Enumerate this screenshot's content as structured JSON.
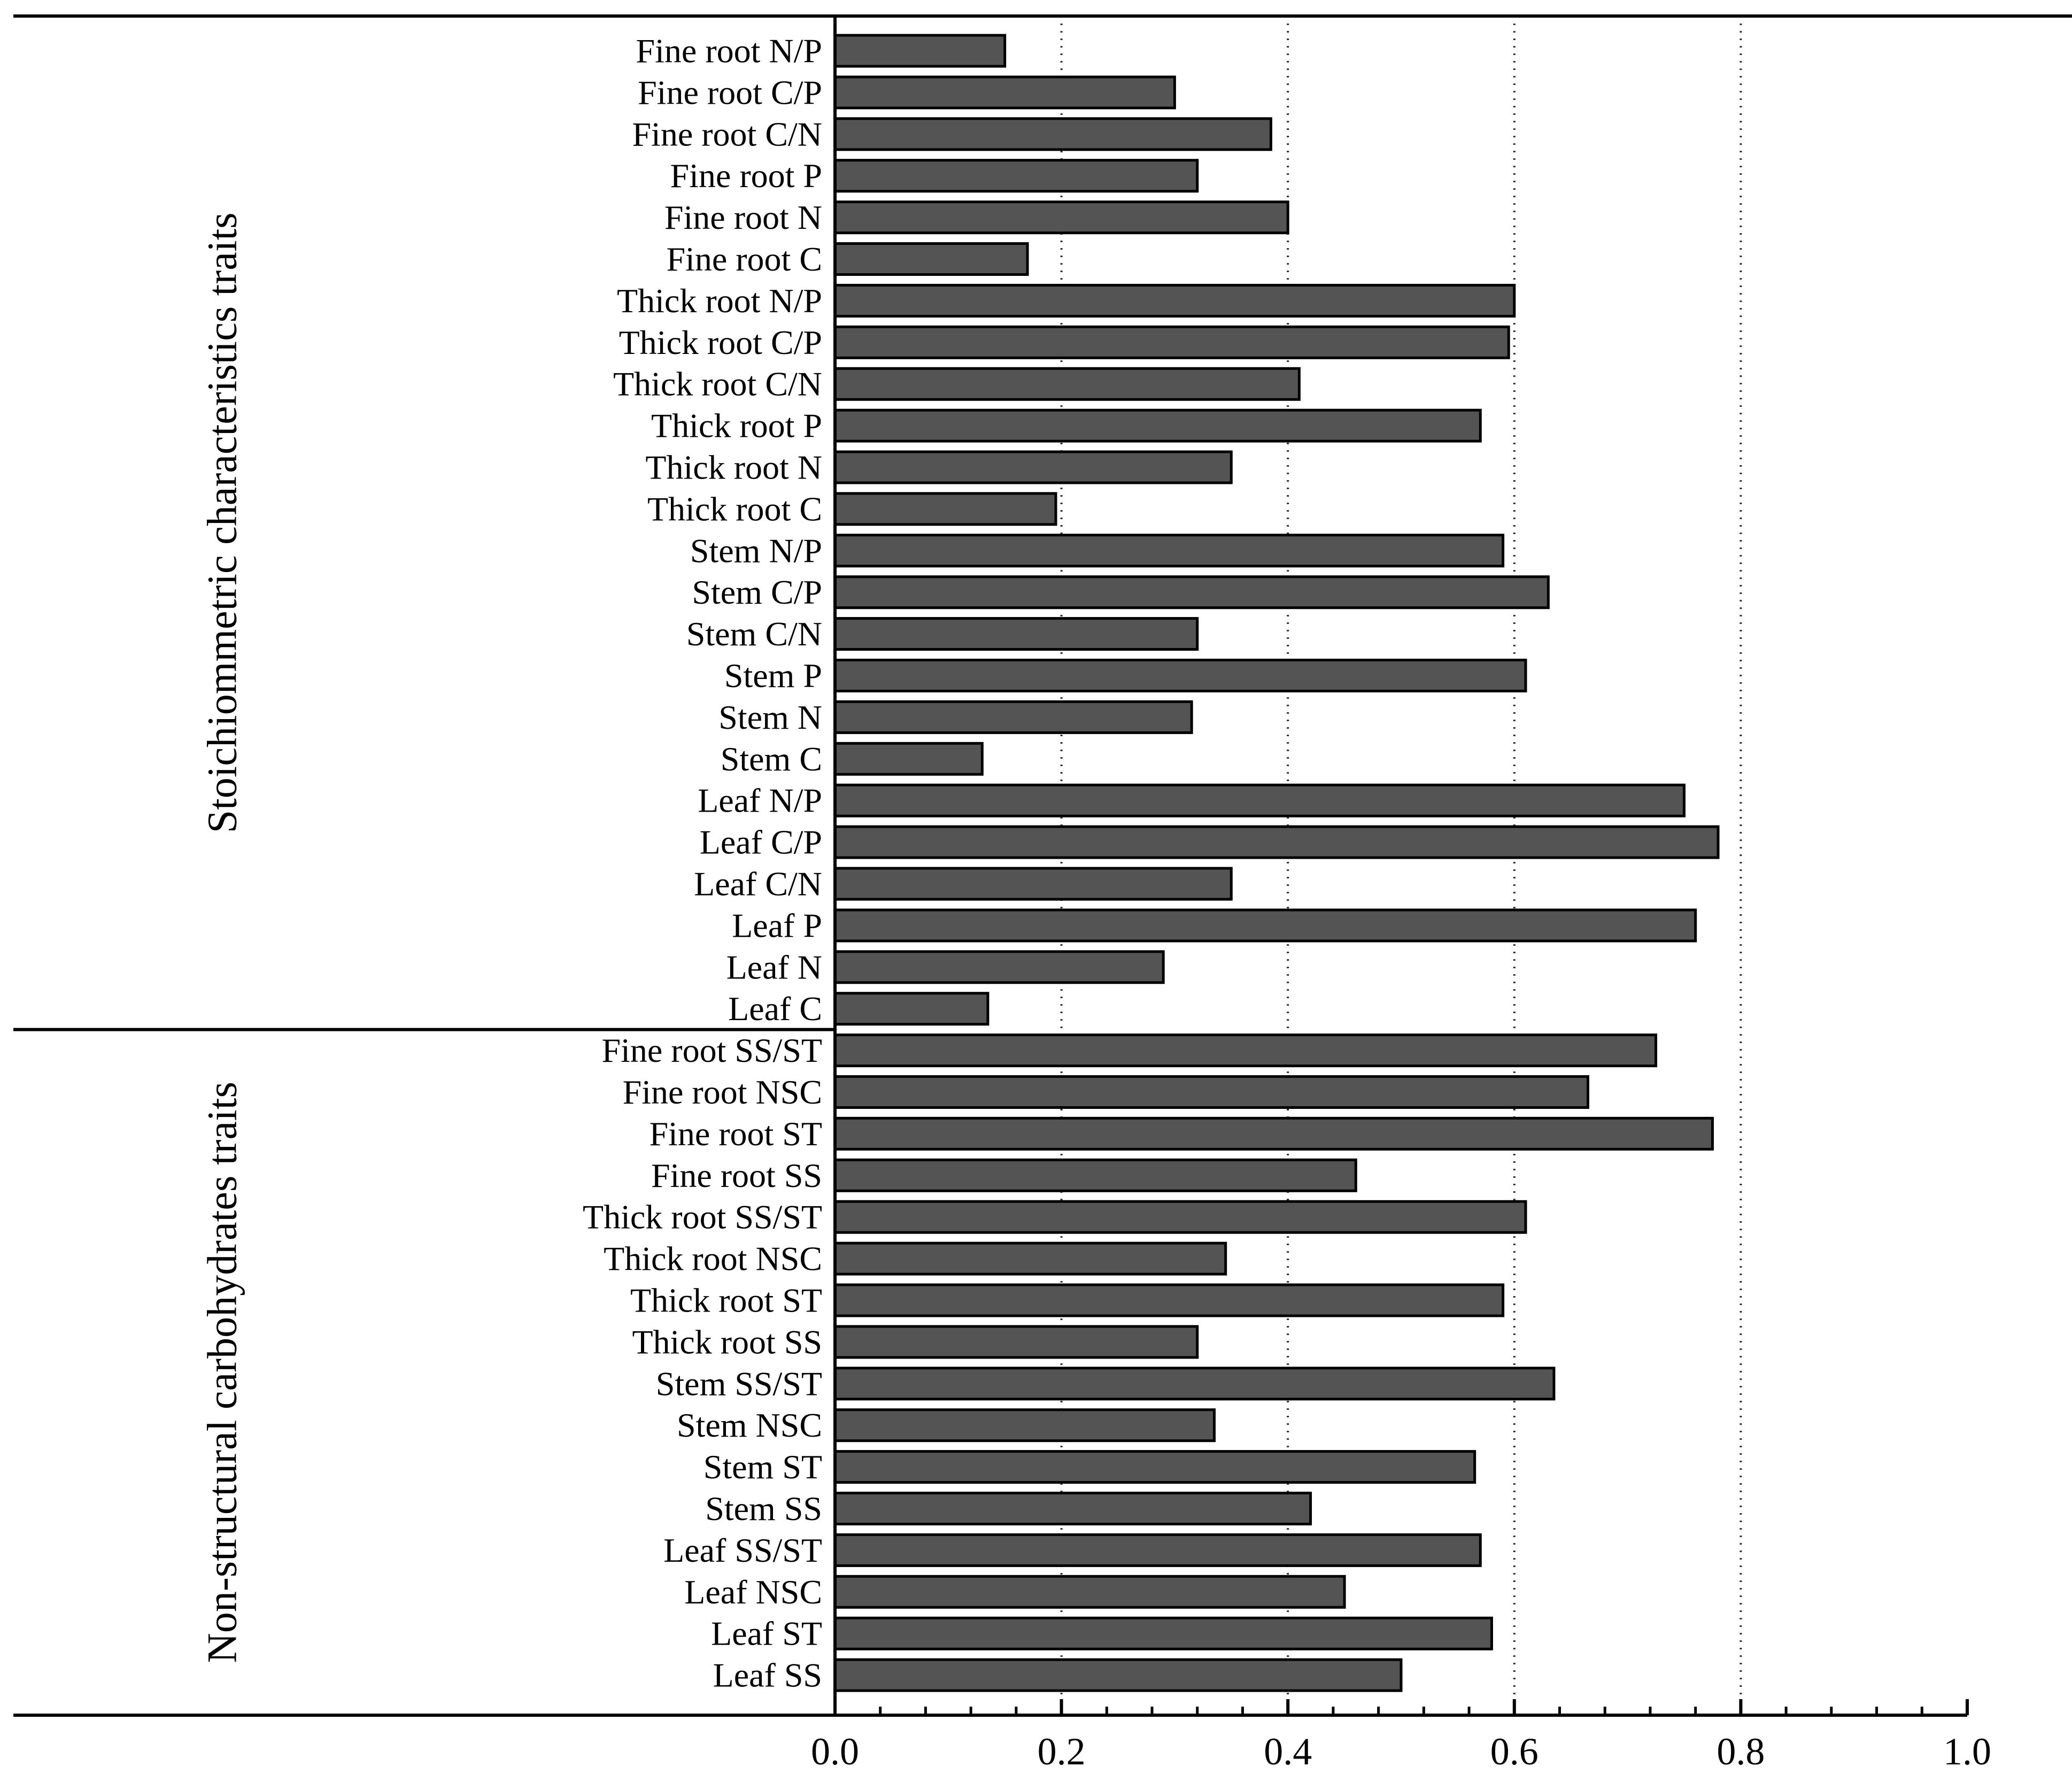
{
  "chart_data": {
    "type": "bar",
    "orientation": "horizontal",
    "title": "",
    "xlabel": "",
    "ylabel": "",
    "xlim": [
      0,
      1.0
    ],
    "xticks": [
      "0.0",
      "0.2",
      "0.4",
      "0.6",
      "0.8",
      "1.0"
    ],
    "grid": "vertical dotted at 0.2, 0.4, 0.6, 0.8",
    "bar_color": "#545454",
    "groups": [
      {
        "name": "Stoichiommetric characteristics traits",
        "categories": [
          "Fine root N/P",
          "Fine root C/P",
          "Fine root C/N",
          "Fine root P",
          "Fine root N",
          "Fine root C",
          "Thick root N/P",
          "Thick root C/P",
          "Thick root C/N",
          "Thick root P",
          "Thick root N",
          "Thick root C",
          "Stem N/P",
          "Stem C/P",
          "Stem C/N",
          "Stem P",
          "Stem N",
          "Stem C",
          "Leaf N/P",
          "Leaf C/P",
          "Leaf C/N",
          "Leaf P",
          "Leaf N",
          "Leaf C"
        ],
        "values": [
          0.15,
          0.3,
          0.385,
          0.32,
          0.4,
          0.17,
          0.6,
          0.595,
          0.41,
          0.57,
          0.35,
          0.195,
          0.59,
          0.63,
          0.32,
          0.61,
          0.315,
          0.13,
          0.75,
          0.78,
          0.35,
          0.76,
          0.29,
          0.135
        ]
      },
      {
        "name": "Non-structural carbohydrates traits",
        "categories": [
          "Fine root SS/ST",
          "Fine root NSC",
          "Fine root ST",
          "Fine root SS",
          "Thick root SS/ST",
          "Thick root NSC",
          "Thick root ST",
          "Thick root SS",
          "Stem SS/ST",
          "Stem NSC",
          "Stem ST",
          "Stem SS",
          "Leaf SS/ST",
          "Leaf NSC",
          "Leaf ST",
          "Leaf SS"
        ],
        "values": [
          0.725,
          0.665,
          0.775,
          0.46,
          0.61,
          0.345,
          0.59,
          0.32,
          0.635,
          0.335,
          0.565,
          0.42,
          0.57,
          0.45,
          0.58,
          0.5
        ]
      }
    ]
  }
}
